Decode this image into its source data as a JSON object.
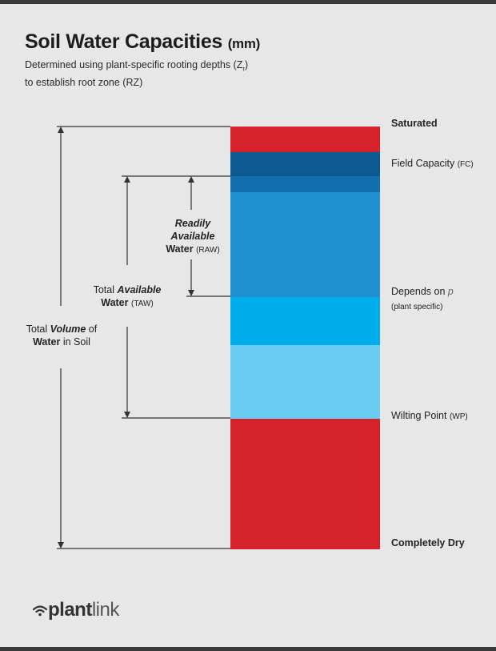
{
  "title": {
    "main": "Soil Water Capacities",
    "unit": "(mm)"
  },
  "subtitle": {
    "line1_pre": "Determined using plant-specific rooting depths (Z",
    "line1_sub": "r",
    "line1_post": ")",
    "line2": "to establish root zone (RZ)"
  },
  "levels": {
    "saturated": "Saturated",
    "field_capacity": "Field Capacity",
    "field_capacity_abbr": "(FC)",
    "depends_on": "Depends on ",
    "depends_p": "p",
    "depends_note": "(plant specific)",
    "wilting_point": "Wilting Point",
    "wilting_point_abbr": "(WP)",
    "completely_dry": "Completely Dry"
  },
  "raw": {
    "word1": "Readily",
    "word2": "Available",
    "word3": "Water",
    "abbr": "(RAW)"
  },
  "taw": {
    "word1": "Total ",
    "word2": "Available",
    "word3": "Water",
    "abbr": "(TAW)"
  },
  "total_volume": {
    "word1": "Total ",
    "word2": "Volume",
    "word3": " of",
    "word4": "Water",
    "word5": " in Soil"
  },
  "logo": {
    "part1": "plant",
    "part2": "link"
  },
  "colors": {
    "saturated_red": "#d6222a",
    "field_capacity_blue": "#0b5a91",
    "upper_blue": "#126fac",
    "raw_blue": "#1f8fcf",
    "mid_blue": "#00adeb",
    "light_blue": "#69cdf3",
    "dry_red": "#d6222a"
  }
}
